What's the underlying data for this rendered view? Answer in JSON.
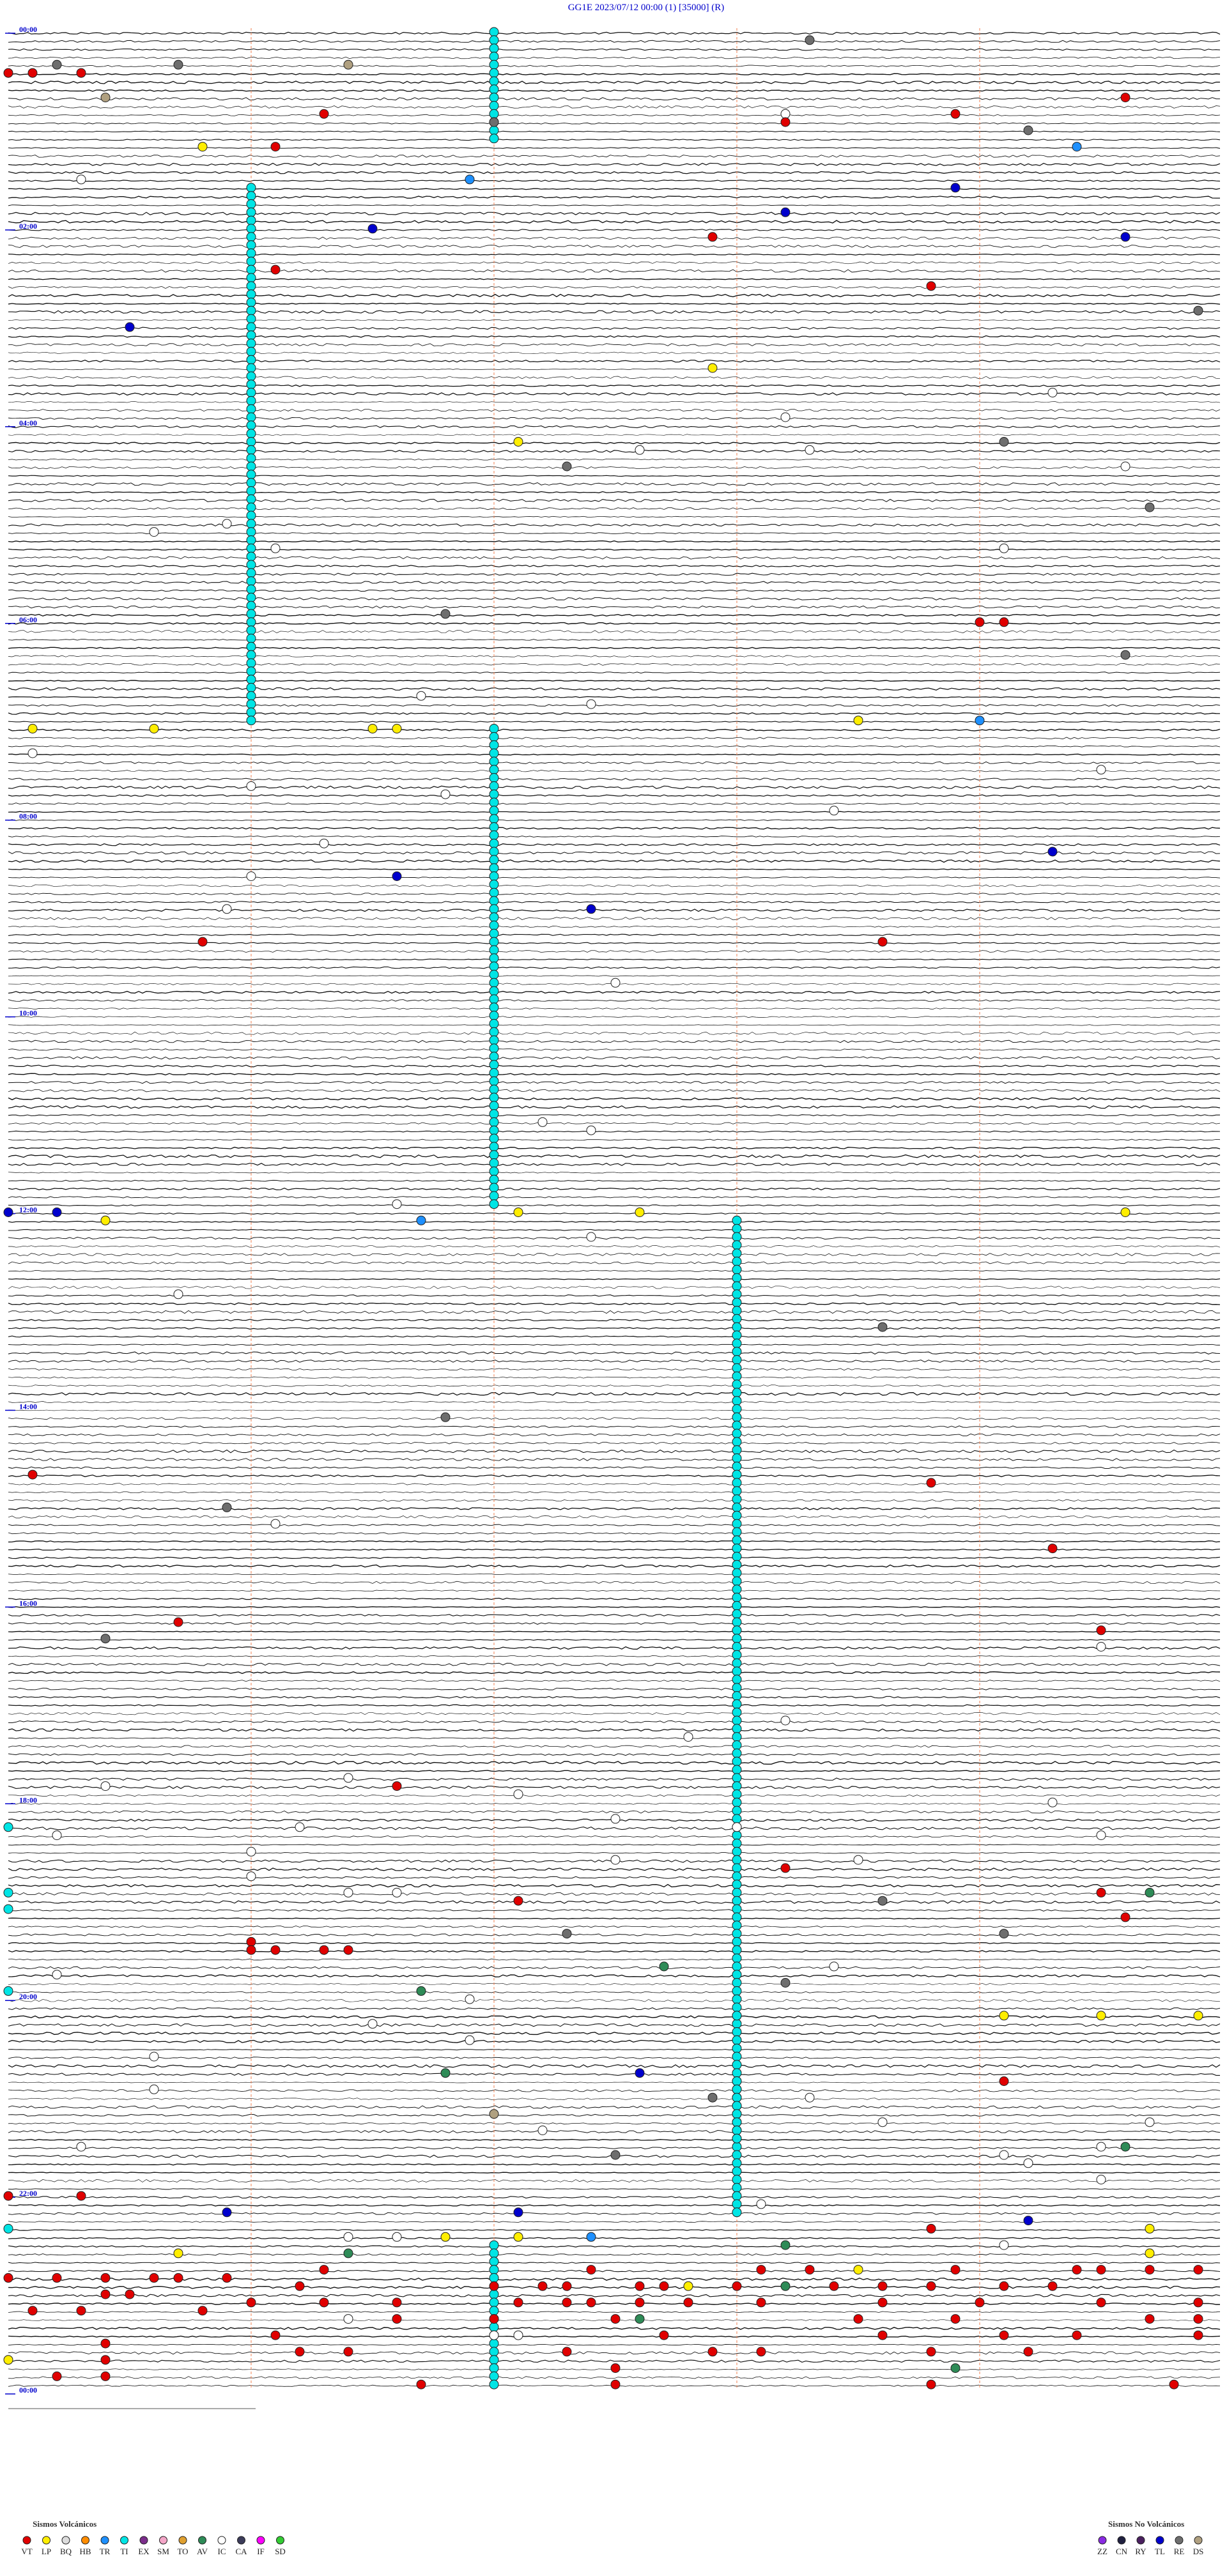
{
  "chart_data": {
    "type": "helicorder",
    "title": "GG1E     2023/07/12 00:00     (1)     [35000]  (R)",
    "line_minutes": 5,
    "xticks": [
      1,
      2,
      3,
      4
    ],
    "ylim": [
      0,
      1440
    ],
    "hour_marks": [
      {
        "value": 0,
        "label": "00:00"
      },
      {
        "value": 120,
        "label": "02:00"
      },
      {
        "value": 240,
        "label": "04:00"
      },
      {
        "value": 360,
        "label": "06:00"
      },
      {
        "value": 480,
        "label": "08:00"
      },
      {
        "value": 600,
        "label": "10:00"
      },
      {
        "value": 720,
        "label": "12:00"
      },
      {
        "value": 840,
        "label": "14:00"
      },
      {
        "value": 960,
        "label": "16:00"
      },
      {
        "value": 1080,
        "label": "18:00"
      },
      {
        "value": 1200,
        "label": "20:00"
      },
      {
        "value": 1320,
        "label": "22:00"
      },
      {
        "value": 1440,
        "label": "00:00"
      }
    ],
    "ti_runs": {
      "type": "TI",
      "start": [
        2,
        96,
        427,
        728,
        1253,
        1352
      ],
      "end": [
        67,
        421,
        717,
        1333,
        1288,
        1437
      ]
    },
    "events": [
      [
        "RE",
        8.3
      ],
      [
        "RE",
        20.7
      ],
      [
        "RE",
        20.2
      ],
      [
        "VT",
        25
      ],
      [
        "VT",
        25.1
      ],
      [
        "VT",
        25.3
      ],
      [
        "DS",
        21.4
      ],
      [
        "DS",
        40.4
      ],
      [
        "VT",
        44.6
      ],
      [
        "VT",
        51.3
      ],
      [
        "IC",
        53.2
      ],
      [
        "VT",
        58.2
      ],
      [
        "RE",
        57
      ],
      [
        "VT",
        53.9
      ],
      [
        "RE",
        64.2
      ],
      [
        "LP",
        70.8
      ],
      [
        "VT",
        71.1
      ],
      [
        "TR",
        74.4
      ],
      [
        "TR",
        91.9
      ],
      [
        "TL",
        98.9
      ],
      [
        "IC",
        90.3
      ],
      [
        "TL",
        113.2
      ],
      [
        "TL",
        121.5
      ],
      [
        "TL",
        129.6
      ],
      [
        "VT",
        127.9
      ],
      [
        "VT",
        146.1
      ],
      [
        "VT",
        158.8
      ],
      [
        "RE",
        174.9
      ],
      [
        "TL",
        180.5
      ],
      [
        "LP",
        207.9
      ],
      [
        "IC",
        224.3
      ],
      [
        "IC",
        238.2
      ],
      [
        "LP",
        252.1
      ],
      [
        "RE",
        254.1
      ],
      [
        "IC",
        257.6
      ],
      [
        "IC",
        258.3
      ],
      [
        "RE",
        267.3
      ],
      [
        "IC",
        269.6
      ],
      [
        "RE",
        294.7
      ],
      [
        "IC",
        305.6
      ],
      [
        "IC",
        300.9
      ],
      [
        "IC",
        316.1
      ],
      [
        "IC",
        319.1
      ],
      [
        "RE",
        356.8
      ],
      [
        "VT",
        364
      ],
      [
        "VT",
        364.1
      ],
      [
        "RE",
        384.6
      ],
      [
        "IC",
        406.7
      ],
      [
        "IC",
        412.4
      ],
      [
        "LP",
        426.5
      ],
      [
        "LP",
        426.6
      ],
      [
        "LP",
        423.5
      ],
      [
        "TR",
        424
      ],
      [
        "LP",
        425.1
      ],
      [
        "LP",
        425.6
      ],
      [
        "IC",
        440.1
      ],
      [
        "IC",
        461
      ],
      [
        "IC",
        454.5
      ],
      [
        "IC",
        466.8
      ],
      [
        "IC",
        478.4
      ],
      [
        "IC",
        496.3
      ],
      [
        "TL",
        504.3
      ],
      [
        "TL",
        516.6
      ],
      [
        "IC",
        516
      ],
      [
        "TL",
        537.4
      ],
      [
        "IC",
        535.9
      ],
      [
        "VT",
        558.6
      ],
      [
        "VT",
        555.8
      ],
      [
        "IC",
        582.5
      ],
      [
        "IC",
        667.2
      ],
      [
        "IC",
        672.4
      ],
      [
        "IC",
        716.6
      ],
      [
        "TL",
        720
      ],
      [
        "TL",
        720.2
      ],
      [
        "LP",
        722.1
      ],
      [
        "LP",
        722.6
      ],
      [
        "LP",
        724.6
      ],
      [
        "LP",
        725.4
      ],
      [
        "TR",
        726.7
      ],
      [
        "IC",
        737.4
      ],
      [
        "IC",
        770.7
      ],
      [
        "RE",
        793.6
      ],
      [
        "RE",
        846.8
      ],
      [
        "VT",
        880.1
      ],
      [
        "VT",
        888.8
      ],
      [
        "RE",
        900.9
      ],
      [
        "IC",
        911.1
      ],
      [
        "VT",
        929.3
      ],
      [
        "VT",
        970.7
      ],
      [
        "RE",
        980.4
      ],
      [
        "VT",
        979.5
      ],
      [
        "IC",
        989.5
      ],
      [
        "IC",
        1033.2
      ],
      [
        "IC",
        1042.8
      ],
      [
        "IC",
        1066.4
      ],
      [
        "VT",
        1071.6
      ],
      [
        "IC",
        1070.4
      ],
      [
        "IC",
        1077.1
      ],
      [
        "IC",
        1084.3
      ],
      [
        "IC",
        1092.5
      ],
      [
        "IC",
        1098
      ],
      [
        "IC",
        1096.2
      ],
      [
        "TI",
        1095
      ],
      [
        "IC",
        1100.2
      ],
      [
        "IC",
        1104.5
      ],
      [
        "IC",
        1111
      ],
      [
        "VT",
        1123.2
      ],
      [
        "IC",
        1117.5
      ],
      [
        "IC",
        1118.5
      ],
      [
        "IC",
        1126
      ],
      [
        "TI",
        1135
      ],
      [
        "AV",
        1139.7
      ],
      [
        "VT",
        1139.5
      ],
      [
        "RE",
        1143.6
      ],
      [
        "VT",
        1142.1
      ],
      [
        "IC",
        1136.4
      ],
      [
        "IC",
        1136.6
      ],
      [
        "TI",
        1145
      ],
      [
        "VT",
        1154.6
      ],
      [
        "RE",
        1164.1
      ],
      [
        "RE",
        1162.3
      ],
      [
        "VT",
        1166
      ],
      [
        "VT",
        1171
      ],
      [
        "VT",
        1171.1
      ],
      [
        "VT",
        1171.3
      ],
      [
        "VT",
        1171.4
      ],
      [
        "AV",
        1182.7
      ],
      [
        "IC",
        1183.4
      ],
      [
        "IC",
        1185.2
      ],
      [
        "RE",
        1193.2
      ],
      [
        "TI",
        1195
      ],
      [
        "AV",
        1196.7
      ],
      [
        "IC",
        1201.9
      ],
      [
        "LP",
        1214.1
      ],
      [
        "LP",
        1214.5
      ],
      [
        "LP",
        1214.9
      ],
      [
        "TI",
        1213
      ],
      [
        "IC",
        1216.5
      ],
      [
        "IC",
        1226.9
      ],
      [
        "IC",
        1235.6
      ],
      [
        "TL",
        1247.6
      ],
      [
        "AV",
        1246.8
      ],
      [
        "VT",
        1254.1
      ],
      [
        "IC",
        1255.6
      ],
      [
        "RE",
        1262.9
      ],
      [
        "IC",
        1263.3
      ],
      [
        "DS",
        1272
      ],
      [
        "IC",
        1282.2
      ],
      [
        "IC",
        1278.6
      ],
      [
        "IC",
        1279.7
      ],
      [
        "RE",
        1297.5
      ],
      [
        "AV",
        1294.6
      ],
      [
        "IC",
        1294.5
      ],
      [
        "IC",
        1304.2
      ],
      [
        "IC",
        1299.1
      ],
      [
        "IC",
        1290.3
      ],
      [
        "IC",
        1314.5
      ],
      [
        "VT",
        1320
      ],
      [
        "VT",
        1320.3
      ],
      [
        "TL",
        1330.9
      ],
      [
        "TL",
        1332.1
      ],
      [
        "IC",
        1328.1
      ],
      [
        "TL",
        1339.2
      ],
      [
        "TI",
        1340
      ],
      [
        "VT",
        1343.8
      ],
      [
        "LP",
        1344.7
      ],
      [
        "TR",
        1347.4
      ],
      [
        "IC",
        1346.4
      ],
      [
        "IC",
        1346.6
      ],
      [
        "LP",
        1346.8
      ],
      [
        "LP",
        1347.1
      ],
      [
        "AV",
        1353.2
      ],
      [
        "LP",
        1355.7
      ],
      [
        "AV",
        1356.4
      ],
      [
        "LP",
        1359.7
      ],
      [
        "IC",
        1354.1
      ],
      [
        "VT",
        1366.3
      ],
      [
        "VT",
        1367.4
      ],
      [
        "VT",
        1368.1
      ],
      [
        "VT",
        1368.3
      ],
      [
        "LP",
        1368.5
      ],
      [
        "VT",
        1368.9
      ],
      [
        "VT",
        1369.4
      ],
      [
        "VT",
        1369.5
      ],
      [
        "VT",
        1369.7
      ],
      [
        "VT",
        1369.9
      ],
      [
        "VT",
        1370
      ],
      [
        "VT",
        1370.2
      ],
      [
        "VT",
        1370.4
      ],
      [
        "VT",
        1370.6
      ],
      [
        "VT",
        1370.7
      ],
      [
        "VT",
        1370.9
      ],
      [
        "VT",
        1376.2
      ],
      [
        "VT",
        1377
      ],
      [
        "VT",
        1377.2
      ],
      [
        "VT",
        1377.3
      ],
      [
        "VT",
        1377.6
      ],
      [
        "VT",
        1377.7
      ],
      [
        "LP",
        1377.8
      ],
      [
        "VT",
        1378
      ],
      [
        "AV",
        1378.2
      ],
      [
        "VT",
        1378.4
      ],
      [
        "VT",
        1378.6
      ],
      [
        "VT",
        1378.8
      ],
      [
        "VT",
        1379.1
      ],
      [
        "VT",
        1379.3
      ],
      [
        "VT",
        1380.4
      ],
      [
        "VT",
        1380.5
      ],
      [
        "VT",
        1386
      ],
      [
        "VT",
        1386.3
      ],
      [
        "VT",
        1386.6
      ],
      [
        "VT",
        1387.1
      ],
      [
        "VT",
        1387.3
      ],
      [
        "VT",
        1387.4
      ],
      [
        "VT",
        1387.6
      ],
      [
        "VT",
        1387.8
      ],
      [
        "VT",
        1388.1
      ],
      [
        "VT",
        1388.6
      ],
      [
        "VT",
        1389
      ],
      [
        "VT",
        1389.5
      ],
      [
        "VT",
        1389.9
      ],
      [
        "VT",
        1390.1
      ],
      [
        "VT",
        1390.3
      ],
      [
        "VT",
        1390.8
      ],
      [
        "IC",
        1396.4
      ],
      [
        "VT",
        1396.6
      ],
      [
        "VT",
        1397
      ],
      [
        "VT",
        1397.5
      ],
      [
        "AV",
        1397.6
      ],
      [
        "VT",
        1398.5
      ],
      [
        "VT",
        1398.9
      ],
      [
        "VT",
        1399.7
      ],
      [
        "VT",
        1399.9
      ],
      [
        "VT",
        1406.1
      ],
      [
        "IC",
        1407
      ],
      [
        "IC",
        1407.1
      ],
      [
        "VT",
        1407.7
      ],
      [
        "VT",
        1408.6
      ],
      [
        "VT",
        1409.1
      ],
      [
        "VT",
        1409.4
      ],
      [
        "VT",
        1409.9
      ],
      [
        "VT",
        1410.4
      ],
      [
        "VT",
        1416.2
      ],
      [
        "VT",
        1416.4
      ],
      [
        "VT",
        1417.3
      ],
      [
        "VT",
        1417.9
      ],
      [
        "VT",
        1418.1
      ],
      [
        "VT",
        1418.8
      ],
      [
        "VT",
        1419.2
      ],
      [
        "LP",
        1420
      ],
      [
        "VT",
        1420.4
      ],
      [
        "VT",
        1427.5
      ],
      [
        "AV",
        1428.9
      ],
      [
        "VT",
        1430.2
      ],
      [
        "VT",
        1430.4
      ],
      [
        "VT",
        1436.7
      ],
      [
        "VT",
        1437.5
      ],
      [
        "VT",
        1438.8
      ],
      [
        "VT",
        1439.8
      ]
    ],
    "legend_volcanic": {
      "title": "Sismos Volcánicos",
      "types": [
        {
          "code": "VT",
          "color": "#e00000"
        },
        {
          "code": "LP",
          "color": "#ffee00"
        },
        {
          "code": "BQ",
          "color": "#dcdcdc"
        },
        {
          "code": "HB",
          "color": "#ff8c00"
        },
        {
          "code": "TR",
          "color": "#1e90ff"
        },
        {
          "code": "TI",
          "color": "#00e5e5"
        },
        {
          "code": "EX",
          "color": "#7b2d8b"
        },
        {
          "code": "SM",
          "color": "#f4a6c8"
        },
        {
          "code": "TO",
          "color": "#e0a030"
        },
        {
          "code": "AV",
          "color": "#2e8b57"
        },
        {
          "code": "IC",
          "color": "#ffffff"
        },
        {
          "code": "CA",
          "color": "#3c3c5a"
        },
        {
          "code": "IF",
          "color": "#ff00ff"
        },
        {
          "code": "SD",
          "color": "#33cc33"
        }
      ]
    },
    "legend_nonvolcanic": {
      "title": "Sismos No Volcánicos",
      "types": [
        {
          "code": "ZZ",
          "color": "#8a2be2"
        },
        {
          "code": "CN",
          "color": "#202040"
        },
        {
          "code": "RY",
          "color": "#4b2060"
        },
        {
          "code": "TL",
          "color": "#0000cd"
        },
        {
          "code": "RE",
          "color": "#6e6e6e"
        },
        {
          "code": "DS",
          "color": "#b0a080"
        }
      ]
    }
  }
}
